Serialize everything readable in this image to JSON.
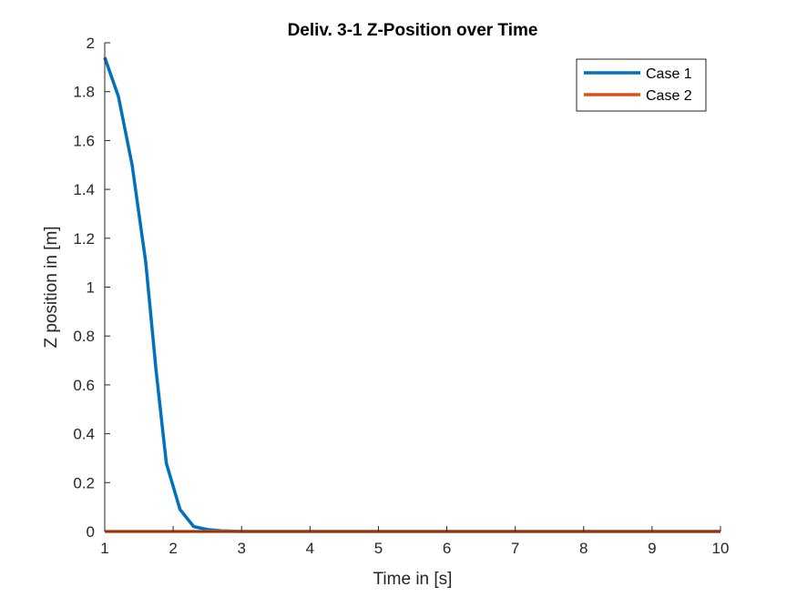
{
  "chart_data": {
    "type": "line",
    "title": "Deliv. 3-1 Z-Position over Time",
    "xlabel": "Time in [s]",
    "ylabel": "Z position in [m]",
    "xlim": [
      1,
      10
    ],
    "ylim": [
      0,
      2
    ],
    "xticks": [
      1,
      2,
      3,
      4,
      5,
      6,
      7,
      8,
      9,
      10
    ],
    "yticks": [
      0,
      0.2,
      0.4,
      0.6,
      0.8,
      1,
      1.2,
      1.4,
      1.6,
      1.8,
      2
    ],
    "legend_position": "top-right",
    "grid": false,
    "series": [
      {
        "name": "Case 1",
        "color": "#0072BD",
        "x": [
          1.0,
          1.2,
          1.4,
          1.6,
          1.75,
          1.9,
          2.1,
          2.3,
          2.5,
          2.7,
          2.9,
          3.0,
          4.0,
          5.0,
          6.0,
          7.0,
          8.0,
          9.0,
          10.0
        ],
        "y": [
          1.94,
          1.78,
          1.5,
          1.1,
          0.66,
          0.28,
          0.09,
          0.02,
          0.008,
          0.003,
          0.001,
          0.0,
          0.0,
          0.0,
          0.0,
          0.0,
          0.0,
          0.0,
          0.0
        ]
      },
      {
        "name": "Case 2",
        "color": "#D95319",
        "x": [
          1,
          10
        ],
        "y": [
          0,
          0
        ]
      }
    ]
  }
}
